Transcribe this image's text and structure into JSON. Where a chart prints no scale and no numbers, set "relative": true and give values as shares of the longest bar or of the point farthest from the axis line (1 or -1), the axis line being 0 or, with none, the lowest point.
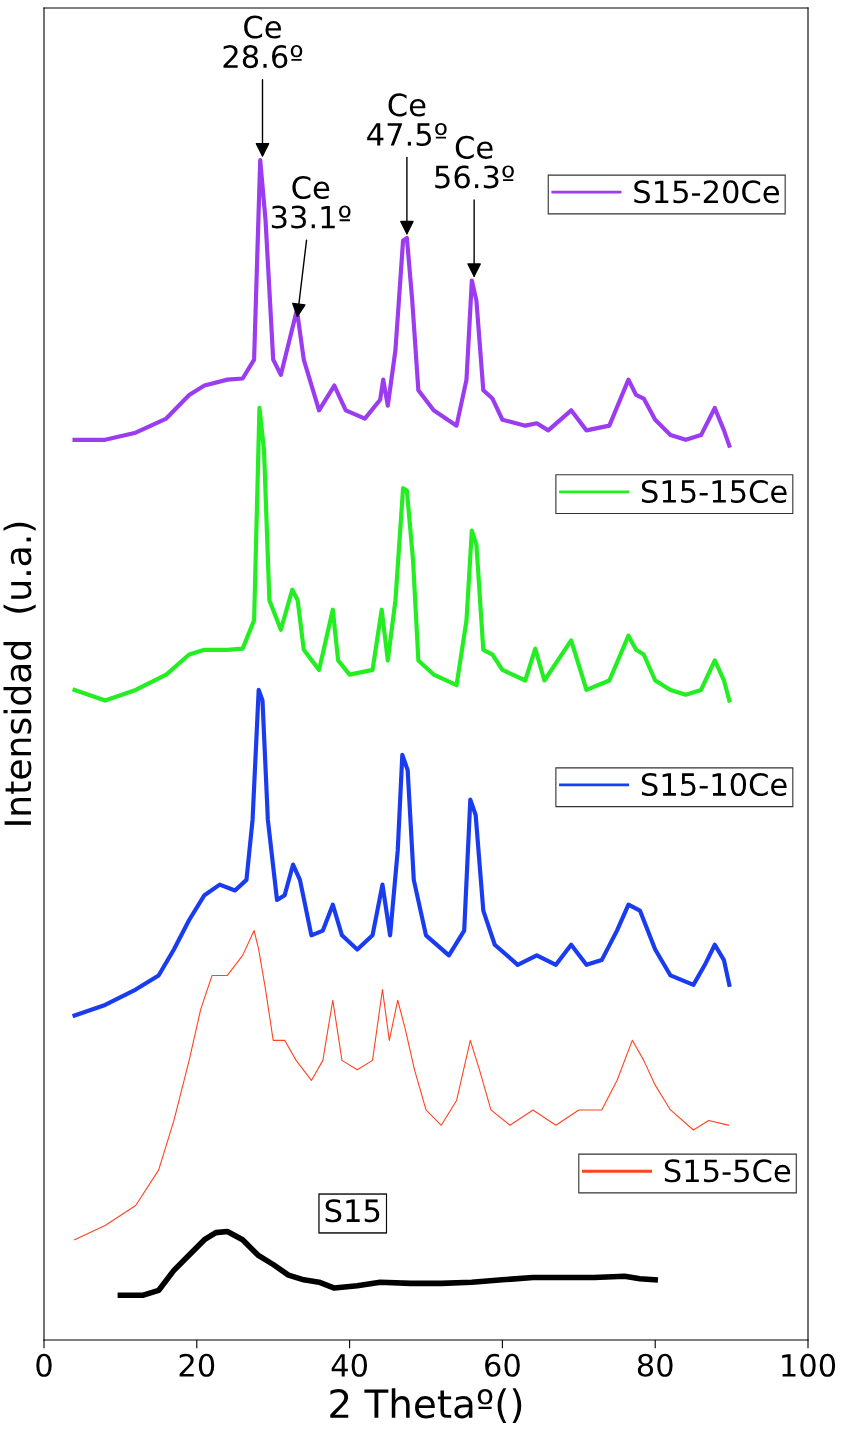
{
  "chart_data": {
    "type": "line",
    "relative": true,
    "xlabel": "2 Thetaº()",
    "ylabel": "Intensidad  (u.a.)",
    "xlim": [
      0,
      100
    ],
    "xticks": [
      0,
      20,
      40,
      60,
      80,
      100
    ],
    "grid": false,
    "legend": "right",
    "marker": "none",
    "line_style": "solid",
    "annotations": [
      {
        "text": "Ce\n28.6º",
        "x": 28.6,
        "y": 1.0
      },
      {
        "text": "Ce\n33.1º",
        "x": 33.1,
        "y": 0.864
      },
      {
        "text": "Ce\n47.5º",
        "x": 47.5,
        "y": 0.934
      },
      {
        "text": "Ce\n56.3º",
        "x": 56.3,
        "y": 0.898
      }
    ],
    "series": [
      {
        "name": "S15-20Ce",
        "color": "#9b3cf0",
        "x": [
          4,
          8,
          12,
          16,
          19,
          21,
          24,
          26,
          27.5,
          28.3,
          29,
          30,
          31,
          32.3,
          33.1,
          34,
          36,
          38,
          39.5,
          42,
          44,
          44.4,
          45,
          46,
          47.0,
          47.5,
          48.2,
          49,
          51,
          54,
          55.3,
          56.0,
          56.6,
          57.5,
          58.7,
          60,
          63,
          64.5,
          66,
          69,
          71,
          74,
          76.5,
          77.5,
          78.5,
          80,
          82,
          84,
          86,
          87.8,
          89,
          89.7
        ],
        "values": [
          0.763,
          0.763,
          0.769,
          0.781,
          0.801,
          0.809,
          0.814,
          0.815,
          0.831,
          1.0,
          0.949,
          0.831,
          0.818,
          0.852,
          0.873,
          0.831,
          0.788,
          0.809,
          0.788,
          0.781,
          0.797,
          0.814,
          0.792,
          0.839,
          0.932,
          0.934,
          0.881,
          0.805,
          0.788,
          0.775,
          0.814,
          0.898,
          0.881,
          0.805,
          0.798,
          0.78,
          0.775,
          0.777,
          0.771,
          0.788,
          0.771,
          0.775,
          0.814,
          0.801,
          0.798,
          0.78,
          0.767,
          0.763,
          0.767,
          0.79,
          0.771,
          0.758
        ]
      },
      {
        "name": "S15-15Ce",
        "color": "#22ee22",
        "x": [
          4,
          8,
          12,
          16,
          19,
          21,
          24,
          26,
          27.5,
          28.2,
          28.8,
          29.5,
          31,
          32.5,
          33.2,
          34,
          36,
          37.8,
          38.5,
          40,
          43,
          44.2,
          45,
          46,
          47.0,
          47.5,
          48.3,
          49,
          51,
          54,
          55.3,
          56.0,
          56.6,
          57.5,
          58.7,
          60,
          63,
          64.3,
          65.5,
          69,
          71,
          74,
          76.5,
          77.5,
          78.5,
          80,
          82,
          84,
          86,
          87.8,
          89,
          89.7
        ],
        "values": [
          0.551,
          0.542,
          0.551,
          0.564,
          0.581,
          0.585,
          0.585,
          0.586,
          0.61,
          0.79,
          0.754,
          0.627,
          0.602,
          0.636,
          0.627,
          0.585,
          0.568,
          0.619,
          0.576,
          0.564,
          0.568,
          0.619,
          0.576,
          0.627,
          0.722,
          0.72,
          0.661,
          0.576,
          0.564,
          0.555,
          0.61,
          0.686,
          0.674,
          0.585,
          0.581,
          0.568,
          0.559,
          0.586,
          0.559,
          0.593,
          0.551,
          0.559,
          0.597,
          0.585,
          0.581,
          0.559,
          0.551,
          0.547,
          0.551,
          0.576,
          0.559,
          0.542
        ]
      },
      {
        "name": "S15-10Ce",
        "color": "#1a3cf0",
        "x": [
          4,
          8,
          12,
          15,
          17,
          19,
          21,
          23,
          25,
          26.5,
          27.3,
          28.1,
          28.6,
          29.3,
          30.5,
          31.5,
          32.6,
          33.5,
          35,
          36.5,
          37.8,
          39,
          41,
          43,
          44.3,
          45.3,
          46.3,
          46.9,
          47.6,
          48.4,
          50,
          53,
          55,
          55.8,
          56.5,
          57.5,
          59,
          62,
          64.5,
          67,
          69,
          71,
          73,
          75,
          76.5,
          78,
          80,
          82,
          85,
          86.5,
          87.8,
          89,
          89.7
        ],
        "values": [
          0.275,
          0.284,
          0.297,
          0.309,
          0.331,
          0.356,
          0.377,
          0.386,
          0.381,
          0.39,
          0.441,
          0.551,
          0.542,
          0.441,
          0.373,
          0.377,
          0.403,
          0.39,
          0.343,
          0.347,
          0.369,
          0.343,
          0.331,
          0.343,
          0.386,
          0.343,
          0.415,
          0.496,
          0.483,
          0.39,
          0.343,
          0.326,
          0.347,
          0.458,
          0.445,
          0.364,
          0.335,
          0.318,
          0.326,
          0.318,
          0.335,
          0.318,
          0.322,
          0.347,
          0.369,
          0.364,
          0.331,
          0.309,
          0.301,
          0.318,
          0.335,
          0.322,
          0.301
        ]
      },
      {
        "name": "S15-5Ce",
        "color": "#ff4422",
        "x": [
          4,
          8,
          12,
          15,
          17,
          19,
          20.5,
          22,
          24,
          26,
          27.5,
          28.1,
          29,
          30,
          31.5,
          33,
          35,
          36.5,
          37.8,
          39,
          41,
          43,
          44.3,
          45.2,
          46.3,
          47.3,
          48.5,
          50,
          52,
          54,
          55.8,
          57,
          58.5,
          61,
          64,
          67,
          70,
          73,
          75,
          77,
          78.5,
          80,
          82,
          85,
          87,
          89.6
        ],
        "values": [
          0.085,
          0.097,
          0.114,
          0.144,
          0.186,
          0.237,
          0.28,
          0.309,
          0.309,
          0.326,
          0.347,
          0.331,
          0.297,
          0.254,
          0.254,
          0.237,
          0.22,
          0.237,
          0.288,
          0.237,
          0.229,
          0.237,
          0.297,
          0.254,
          0.288,
          0.263,
          0.229,
          0.195,
          0.182,
          0.203,
          0.254,
          0.229,
          0.195,
          0.182,
          0.195,
          0.182,
          0.195,
          0.195,
          0.22,
          0.254,
          0.237,
          0.216,
          0.195,
          0.178,
          0.186,
          0.182
        ]
      },
      {
        "name": "S15",
        "color": "#000000",
        "x": [
          10,
          13,
          15,
          17,
          19,
          21,
          22.5,
          24,
          26,
          28,
          30,
          32,
          34,
          36,
          38,
          41,
          44,
          48,
          52,
          56,
          60,
          64,
          68,
          72,
          76,
          78,
          80
        ],
        "values": [
          0.038,
          0.038,
          0.042,
          0.059,
          0.072,
          0.085,
          0.091,
          0.092,
          0.085,
          0.072,
          0.064,
          0.055,
          0.051,
          0.049,
          0.044,
          0.046,
          0.049,
          0.048,
          0.048,
          0.049,
          0.051,
          0.053,
          0.053,
          0.053,
          0.054,
          0.052,
          0.051
        ]
      }
    ]
  }
}
